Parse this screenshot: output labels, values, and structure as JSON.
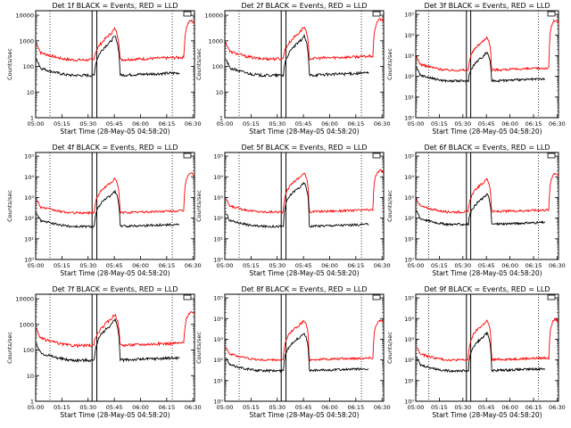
{
  "chart_data": [
    {
      "type": "line",
      "title": "Det 1f BLACK = Events, RED = LLD",
      "ylabel": "Counts/sec",
      "xlabel": "Start Time (28-May-05 04:58:20)",
      "yscale": "log",
      "yticks": [
        1,
        10,
        100,
        1000,
        10000
      ],
      "ytick_labels": [
        "1",
        "10",
        "100",
        "1000",
        "10000"
      ],
      "ylim": [
        1,
        15000
      ],
      "x_ticks": [
        "05:00",
        "05:15",
        "05:30",
        "05:45",
        "06:00",
        "06:15",
        "06:30"
      ],
      "base_black": 45,
      "base_red": 180,
      "peak_black": 1500,
      "peak_red": 3000,
      "end_red": 6000,
      "series": [
        {
          "name": "Events",
          "color": "#000000"
        },
        {
          "name": "LLD",
          "color": "#ff0000"
        }
      ],
      "legend_box": "top-right",
      "dotted_markers": true,
      "box_markers": true
    },
    {
      "type": "line",
      "title": "Det 2f BLACK = Events, RED = LLD",
      "ylabel": "Counts/sec",
      "xlabel": "Start Time (28-May-05 04:58:20)",
      "yscale": "log",
      "yticks": [
        1,
        10,
        100,
        1000,
        10000
      ],
      "ytick_labels": [
        "1",
        "10",
        "100",
        "1000",
        "10000"
      ],
      "ylim": [
        1,
        15000
      ],
      "x_ticks": [
        "05:00",
        "05:15",
        "05:30",
        "05:45",
        "06:00",
        "06:15",
        "06:30"
      ],
      "base_black": 45,
      "base_red": 200,
      "peak_black": 1500,
      "peak_red": 3500,
      "end_red": 7000,
      "series": [
        {
          "name": "Events",
          "color": "#000000"
        },
        {
          "name": "LLD",
          "color": "#ff0000"
        }
      ],
      "legend_box": "top-right",
      "dotted_markers": true,
      "box_markers": true
    },
    {
      "type": "line",
      "title": "Det 3f BLACK = Events, RED = LLD",
      "ylabel": "Counts/sec",
      "xlabel": "Start Time (28-May-05 04:58:20)",
      "yscale": "log",
      "yticks": [
        1,
        10,
        100,
        1000,
        10000,
        100000
      ],
      "ytick_labels": [
        "10⁰",
        "10¹",
        "10²",
        "10³",
        "10⁴",
        "10⁵"
      ],
      "ylim": [
        1,
        150000
      ],
      "x_ticks": [
        "05:00",
        "05:15",
        "05:30",
        "05:45",
        "06:00",
        "06:15",
        "06:30"
      ],
      "base_black": 60,
      "base_red": 200,
      "peak_black": 1500,
      "peak_red": 8000,
      "end_red": 50000,
      "series": [
        {
          "name": "Events",
          "color": "#000000"
        },
        {
          "name": "LLD",
          "color": "#ff0000"
        }
      ],
      "legend_box": "top-right",
      "dotted_markers": true,
      "box_markers": true
    },
    {
      "type": "line",
      "title": "Det 4f BLACK = Events, RED = LLD",
      "ylabel": "Counts/sec",
      "xlabel": "Start Time (28-May-05 04:58:20)",
      "yscale": "log",
      "yticks": [
        1,
        10,
        100,
        1000,
        10000,
        100000
      ],
      "ytick_labels": [
        "10⁰",
        "10¹",
        "10²",
        "10³",
        "10⁴",
        "10⁵"
      ],
      "ylim": [
        1,
        150000
      ],
      "x_ticks": [
        "05:00",
        "05:15",
        "05:30",
        "05:45",
        "06:00",
        "06:15",
        "06:30"
      ],
      "base_black": 40,
      "base_red": 180,
      "peak_black": 2000,
      "peak_red": 8000,
      "end_red": 15000,
      "series": [
        {
          "name": "Events",
          "color": "#000000"
        },
        {
          "name": "LLD",
          "color": "#ff0000"
        }
      ],
      "legend_box": "top-right",
      "dotted_markers": true,
      "box_markers": true
    },
    {
      "type": "line",
      "title": "Det 5f BLACK = Events, RED = LLD",
      "ylabel": "Counts/sec",
      "xlabel": "Start Time (28-May-05 04:58:20)",
      "yscale": "log",
      "yticks": [
        1,
        10,
        100,
        1000,
        10000,
        100000
      ],
      "ytick_labels": [
        "10⁰",
        "10¹",
        "10²",
        "10³",
        "10⁴",
        "10⁵"
      ],
      "ylim": [
        1,
        150000
      ],
      "x_ticks": [
        "05:00",
        "05:15",
        "05:30",
        "05:45",
        "06:00",
        "06:15",
        "06:30"
      ],
      "base_black": 40,
      "base_red": 200,
      "peak_black": 5000,
      "peak_red": 15000,
      "end_red": 20000,
      "series": [
        {
          "name": "Events",
          "color": "#000000"
        },
        {
          "name": "LLD",
          "color": "#ff0000"
        }
      ],
      "legend_box": "top-right",
      "dotted_markers": true,
      "box_markers": true
    },
    {
      "type": "line",
      "title": "Det 6f BLACK = Events, RED = LLD",
      "ylabel": "Counts/sec",
      "xlabel": "Start Time (28-May-05 04:58:20)",
      "yscale": "log",
      "yticks": [
        1,
        10,
        100,
        1000,
        10000,
        100000
      ],
      "ytick_labels": [
        "10⁰",
        "10¹",
        "10²",
        "10³",
        "10⁴",
        "10⁵"
      ],
      "ylim": [
        1,
        150000
      ],
      "x_ticks": [
        "05:00",
        "05:15",
        "05:30",
        "05:45",
        "06:00",
        "06:15",
        "06:30"
      ],
      "base_black": 50,
      "base_red": 200,
      "peak_black": 1500,
      "peak_red": 8000,
      "end_red": 15000,
      "series": [
        {
          "name": "Events",
          "color": "#000000"
        },
        {
          "name": "LLD",
          "color": "#ff0000"
        }
      ],
      "legend_box": "top-right",
      "dotted_markers": true,
      "box_markers": true
    },
    {
      "type": "line",
      "title": "Det 7f BLACK = Events, RED = LLD",
      "ylabel": "Counts/sec",
      "xlabel": "Start Time (28-May-05 04:58:20)",
      "yscale": "log",
      "yticks": [
        1,
        10,
        100,
        1000,
        10000
      ],
      "ytick_labels": [
        "1",
        "10",
        "100",
        "1000",
        "10000"
      ],
      "ylim": [
        1,
        15000
      ],
      "x_ticks": [
        "05:00",
        "05:15",
        "05:30",
        "05:45",
        "06:00",
        "06:15",
        "06:30"
      ],
      "base_black": 40,
      "base_red": 150,
      "peak_black": 1500,
      "peak_red": 2500,
      "end_red": 3000,
      "series": [
        {
          "name": "Events",
          "color": "#000000"
        },
        {
          "name": "LLD",
          "color": "#ff0000"
        }
      ],
      "legend_box": "top-right",
      "dotted_markers": true,
      "box_markers": true
    },
    {
      "type": "line",
      "title": "Det 8f BLACK = Events, RED = LLD",
      "ylabel": "Counts/sec",
      "xlabel": "Start Time (28-May-05 04:58:20)",
      "yscale": "log",
      "yticks": [
        1,
        10,
        100,
        1000,
        10000,
        100000
      ],
      "ytick_labels": [
        "10⁰",
        "10¹",
        "10²",
        "10³",
        "10⁴",
        "10⁵"
      ],
      "ylim": [
        1,
        150000
      ],
      "x_ticks": [
        "05:00",
        "05:15",
        "05:30",
        "05:45",
        "06:00",
        "06:15",
        "06:30"
      ],
      "base_black": 30,
      "base_red": 100,
      "peak_black": 2000,
      "peak_red": 8000,
      "end_red": 8000,
      "series": [
        {
          "name": "Events",
          "color": "#000000"
        },
        {
          "name": "LLD",
          "color": "#ff0000"
        }
      ],
      "legend_box": "top-right",
      "dotted_markers": true,
      "box_markers": true
    },
    {
      "type": "line",
      "title": "Det 9f BLACK = Events, RED = LLD",
      "ylabel": "Counts/sec",
      "xlabel": "Start Time (28-May-05 04:58:20)",
      "yscale": "log",
      "yticks": [
        1,
        10,
        100,
        1000,
        10000,
        100000
      ],
      "ytick_labels": [
        "10⁰",
        "10¹",
        "10²",
        "10³",
        "10⁴",
        "10⁵"
      ],
      "ylim": [
        1,
        150000
      ],
      "x_ticks": [
        "05:00",
        "05:15",
        "05:30",
        "05:45",
        "06:00",
        "06:15",
        "06:30"
      ],
      "base_black": 30,
      "base_red": 100,
      "peak_black": 2000,
      "peak_red": 8000,
      "end_red": 9000,
      "series": [
        {
          "name": "Events",
          "color": "#000000"
        },
        {
          "name": "LLD",
          "color": "#ff0000"
        }
      ],
      "legend_box": "top-right",
      "dotted_markers": true,
      "box_markers": true
    }
  ]
}
